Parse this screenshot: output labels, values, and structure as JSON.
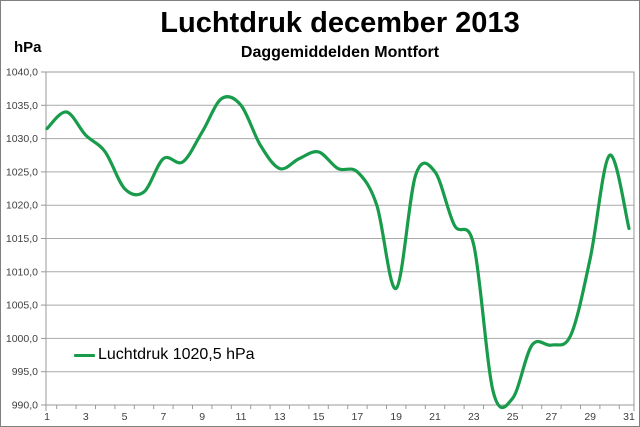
{
  "chart": {
    "title": "Luchtdruk december 2013",
    "subtitle": "Daggemiddelden Montfort",
    "y_unit": "hPa",
    "legend_label": "Luchtdruk 1020,5 hPa",
    "colors": {
      "line": "#189C4C",
      "grid": "#A9A9A9",
      "axis": "#999999",
      "tick_text": "#404040",
      "border": "#808080",
      "background": "#FFFFFF"
    }
  },
  "chart_data": {
    "type": "line",
    "smoothed": true,
    "title": "Luchtdruk december 2013",
    "subtitle": "Daggemiddelden Montfort",
    "xlabel": "",
    "ylabel": "hPa",
    "x": [
      1,
      2,
      3,
      4,
      5,
      6,
      7,
      8,
      9,
      10,
      11,
      12,
      13,
      14,
      15,
      16,
      17,
      18,
      19,
      20,
      21,
      22,
      23,
      24,
      25,
      26,
      27,
      28,
      29,
      30,
      31
    ],
    "series": [
      {
        "name": "Luchtdruk 1020,5 hPa",
        "values": [
          1031.5,
          1034,
          1030.5,
          1028,
          1022.5,
          1022,
          1027,
          1026.5,
          1031,
          1036,
          1035,
          1029,
          1025.5,
          1027,
          1028,
          1025.5,
          1025,
          1020,
          1007.5,
          1024.5,
          1025,
          1017,
          1014,
          992,
          991,
          999,
          999,
          1000.5,
          1012,
          1027.5,
          1016.5
        ]
      }
    ],
    "ylim": [
      990,
      1040
    ],
    "y_tick_step": 5,
    "y_tick_values": [
      1040,
      1035,
      1030,
      1025,
      1020,
      1015,
      1010,
      1005,
      1000,
      995,
      990
    ],
    "y_tick_labels": [
      "1040,0",
      "1035,0",
      "1030,0",
      "1025,0",
      "1020,0",
      "1015,0",
      "1010,0",
      "1005,0",
      "1000,0",
      "995,0",
      "990,0"
    ],
    "x_tick_days": [
      1,
      3,
      5,
      7,
      9,
      11,
      13,
      15,
      17,
      19,
      21,
      23,
      25,
      27,
      29,
      31
    ],
    "x_tick_labels": [
      "1",
      "3",
      "5",
      "7",
      "9",
      "11",
      "13",
      "15",
      "17",
      "19",
      "21",
      "23",
      "25",
      "27",
      "29",
      "31"
    ],
    "grid": "horizontal",
    "legend_position": "inside-bottom-left"
  }
}
